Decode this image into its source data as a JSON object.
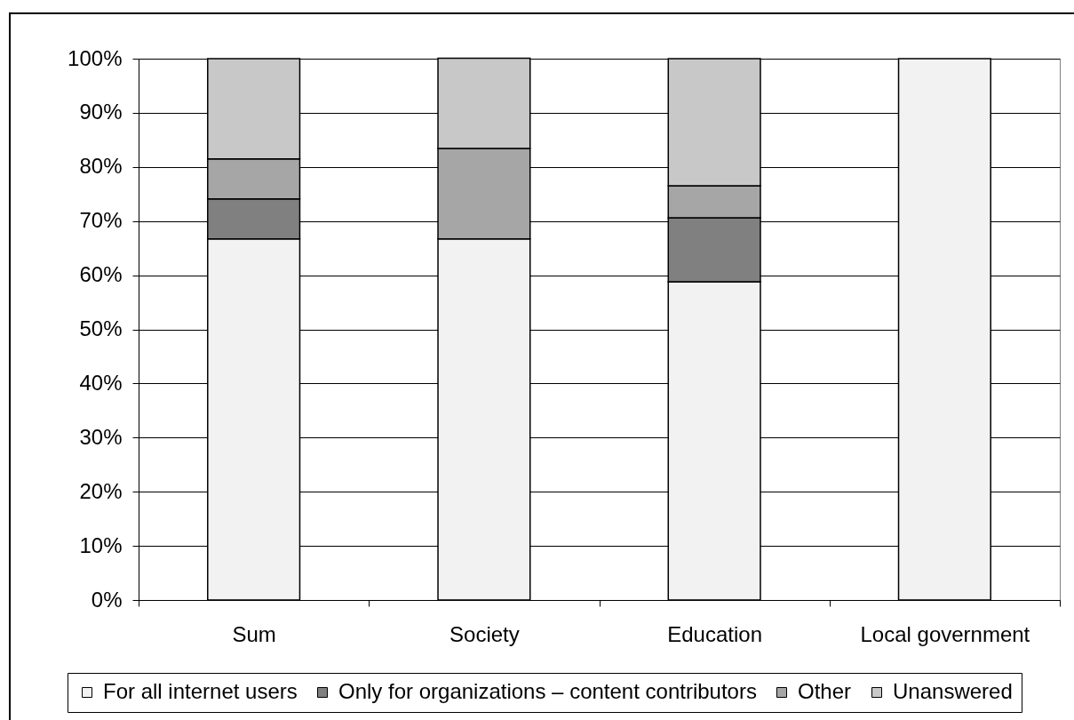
{
  "chart_data": {
    "type": "bar",
    "stacked": true,
    "categories": [
      "Sum",
      "Society",
      "Education",
      "Local government"
    ],
    "series": [
      {
        "name": "For all internet users",
        "color": "#f2f2f2",
        "values": [
          66.7,
          66.7,
          58.8,
          100
        ]
      },
      {
        "name": "Only for organizations – content contributors",
        "color": "#808080",
        "values": [
          7.4,
          0,
          11.8,
          0
        ]
      },
      {
        "name": "Other",
        "color": "#a6a6a6",
        "values": [
          7.4,
          16.7,
          5.9,
          0
        ]
      },
      {
        "name": "Unanswered",
        "color": "#c8c8c8",
        "values": [
          18.5,
          16.7,
          23.5,
          0
        ]
      }
    ],
    "ylim": [
      0,
      100
    ],
    "yticks": [
      {
        "value": 0,
        "label": "0%"
      },
      {
        "value": 10,
        "label": "10%"
      },
      {
        "value": 20,
        "label": "20%"
      },
      {
        "value": 30,
        "label": "30%"
      },
      {
        "value": 40,
        "label": "40%"
      },
      {
        "value": 50,
        "label": "50%"
      },
      {
        "value": 60,
        "label": "60%"
      },
      {
        "value": 70,
        "label": "70%"
      },
      {
        "value": 80,
        "label": "80%"
      },
      {
        "value": 90,
        "label": "90%"
      },
      {
        "value": 100,
        "label": "100%"
      }
    ],
    "grid": "y",
    "legend": "bottom"
  }
}
